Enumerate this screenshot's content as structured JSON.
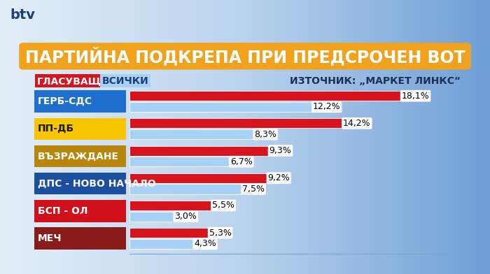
{
  "chart_data": {
    "type": "bar",
    "orientation": "horizontal",
    "title": "ПАРТИЙНА ПОДКРЕПА ПРИ ПРЕДСРОЧЕН ВОТ",
    "annotations": [
      "ИЗТОЧНИК: „МАРКЕТ ЛИНКС“",
      "btv"
    ],
    "categories": [
      "ГЕРБ-СДС",
      "ПП-ДБ",
      "ВЪЗРАЖДАНЕ",
      "ДПС - НОВО НАЧАЛО",
      "БСП - ОЛ",
      "МЕЧ"
    ],
    "series": [
      {
        "name": "ГЛАСУВАЩИ",
        "color": "#d7141e",
        "values": [
          18.1,
          14.2,
          9.3,
          9.2,
          5.5,
          5.3
        ],
        "value_labels": [
          "18,1%",
          "14,2%",
          "9,3%",
          "9,2%",
          "5,5%",
          "5,3%"
        ]
      },
      {
        "name": "ВСИЧКИ",
        "color": "#a9d1f5",
        "values": [
          12.2,
          8.3,
          6.7,
          7.5,
          3.0,
          4.3
        ],
        "value_labels": [
          "12,2%",
          "8,3%",
          "6,7%",
          "7,5%",
          "3,0%",
          "4,3%"
        ]
      }
    ],
    "xlim": [
      0,
      23
    ],
    "xticks": [],
    "legend": "upper left",
    "data_labels": true,
    "tick_labels": false,
    "grid": false
  }
}
